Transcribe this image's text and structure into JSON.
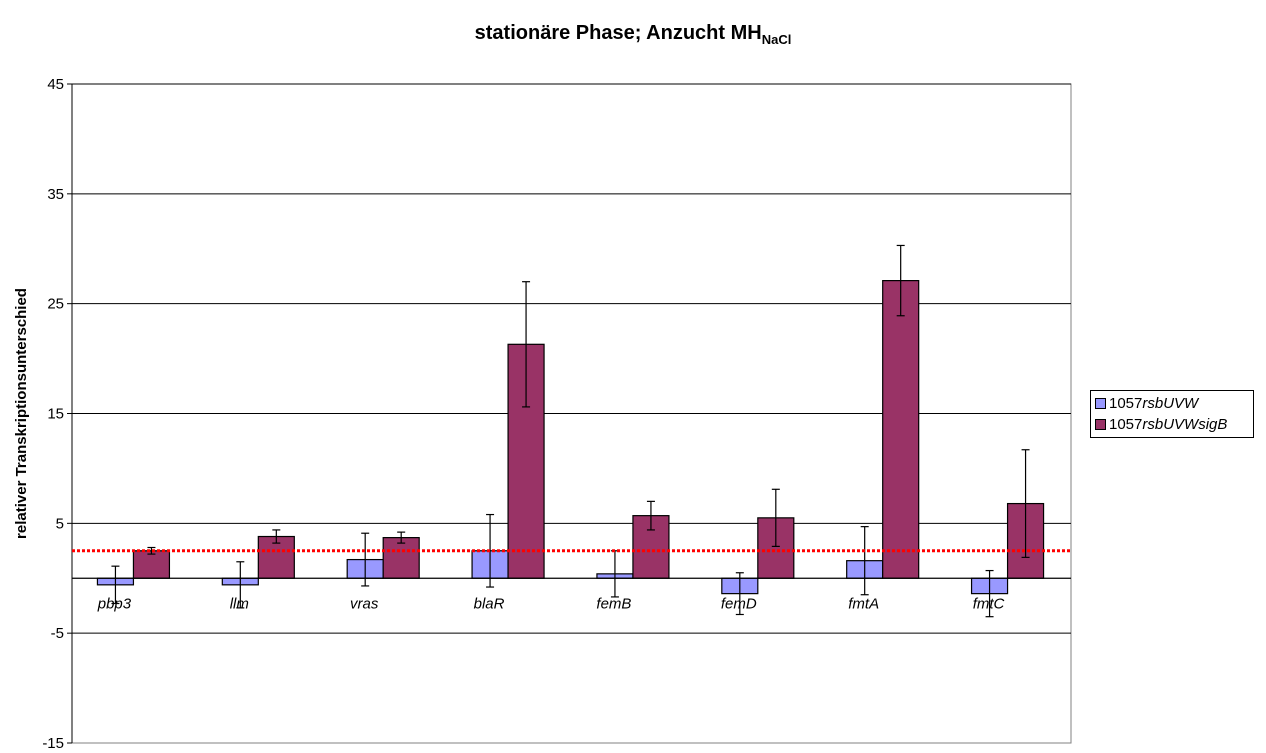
{
  "title": {
    "main": "stationäre Phase; Anzucht MH",
    "sub": "NaCl"
  },
  "legend": {
    "items": [
      {
        "prefix": "1057",
        "suffix": "rsbUVW",
        "color": "#9999ff"
      },
      {
        "prefix": "1057",
        "suffix": "rsbUVWsigB",
        "color": "#993366"
      }
    ]
  },
  "chart_data": {
    "type": "bar",
    "title": "stationäre Phase; Anzucht MHNaCl",
    "ylabel": "relativer Transkriptionsunterschied",
    "xlabel": "",
    "ylim": [
      -15,
      45
    ],
    "yticks": [
      -15,
      -5,
      5,
      15,
      25,
      35,
      45
    ],
    "grid": true,
    "legend_position": "right",
    "categories": [
      "pbp3",
      "llm",
      "vras",
      "blaR",
      "femB",
      "femD",
      "fmtA",
      "fmtC"
    ],
    "series": [
      {
        "name": "1057rsbUVW",
        "color": "#9999ff",
        "values": [
          -0.6,
          -0.6,
          1.7,
          2.5,
          0.4,
          -1.4,
          1.6,
          -1.4
        ],
        "error": [
          1.7,
          2.1,
          2.4,
          3.3,
          2.1,
          1.9,
          3.1,
          2.1
        ]
      },
      {
        "name": "1057rsbUVWsigB",
        "color": "#993366",
        "values": [
          2.5,
          3.8,
          3.7,
          21.3,
          5.7,
          5.5,
          27.1,
          6.8
        ],
        "error": [
          0.3,
          0.6,
          0.5,
          5.7,
          1.3,
          2.6,
          3.2,
          4.9
        ]
      }
    ],
    "reference_line": {
      "value": 2.5,
      "color": "#ff0000",
      "style": "dotted"
    }
  }
}
